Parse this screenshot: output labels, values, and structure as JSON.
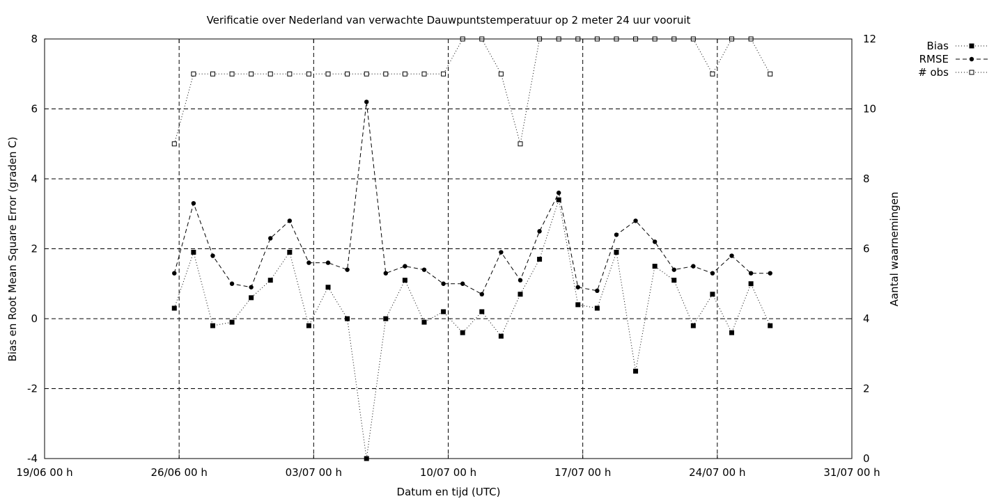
{
  "chart_data": {
    "type": "line",
    "title": "Verificatie over Nederland van verwachte Dauwpuntstemperatuur op 2 meter 24 uur vooruit",
    "xlabel": "Datum en tijd (UTC)",
    "ylabel": "Bias en Root Mean Square Error (graden C)",
    "y2label": "Aantal waarnemingen",
    "x_ticks": [
      "19/06 00 h",
      "26/06 00 h",
      "03/07 00 h",
      "10/07 00 h",
      "17/07 00 h",
      "24/07 00 h",
      "31/07 00 h"
    ],
    "y_ticks": [
      "8",
      "6",
      "4",
      "2",
      "0",
      "-2",
      "-4"
    ],
    "y2_ticks": [
      "12",
      "10",
      "8",
      "6",
      "4",
      "2",
      "0"
    ],
    "xlim": [
      "2006-06-19 00:00",
      "2006-07-31 00:00"
    ],
    "ylim": [
      -4,
      8
    ],
    "y2lim": [
      0,
      12
    ],
    "grid": true,
    "legend_position": "top-right outside",
    "x": [
      "2006-06-25 18:00",
      "2006-06-26 18:00",
      "2006-06-27 18:00",
      "2006-06-28 18:00",
      "2006-06-29 18:00",
      "2006-06-30 18:00",
      "2006-07-01 18:00",
      "2006-07-02 18:00",
      "2006-07-03 18:00",
      "2006-07-04 18:00",
      "2006-07-05 18:00",
      "2006-07-06 18:00",
      "2006-07-07 18:00",
      "2006-07-08 18:00",
      "2006-07-09 18:00",
      "2006-07-10 18:00",
      "2006-07-11 18:00",
      "2006-07-12 18:00",
      "2006-07-13 18:00",
      "2006-07-14 18:00",
      "2006-07-15 18:00",
      "2006-07-16 18:00",
      "2006-07-17 18:00",
      "2006-07-18 18:00",
      "2006-07-19 18:00",
      "2006-07-20 18:00",
      "2006-07-21 18:00",
      "2006-07-22 18:00",
      "2006-07-23 18:00",
      "2006-07-24 18:00",
      "2006-07-25 18:00",
      "2006-07-26 18:00"
    ],
    "series": [
      {
        "name": "Bias",
        "axis": "left",
        "marker": "filled-square",
        "dash": "dotted",
        "values": [
          0.3,
          1.9,
          -0.2,
          -0.1,
          0.6,
          1.1,
          1.9,
          -0.2,
          0.9,
          0.0,
          -4.0,
          0.0,
          1.1,
          -0.1,
          0.2,
          -0.4,
          0.2,
          -0.5,
          0.7,
          1.7,
          3.4,
          0.4,
          0.3,
          1.9,
          -1.5,
          1.5,
          1.1,
          -0.2,
          0.7,
          -0.4,
          1.0,
          -0.2
        ]
      },
      {
        "name": "RMSE",
        "axis": "left",
        "marker": "filled-circle",
        "dash": "dashed",
        "values": [
          1.3,
          3.3,
          1.8,
          1.0,
          0.9,
          2.3,
          2.8,
          1.6,
          1.6,
          1.4,
          6.2,
          1.3,
          1.5,
          1.4,
          1.0,
          1.0,
          0.7,
          1.9,
          1.1,
          2.5,
          3.6,
          0.9,
          0.8,
          2.4,
          2.8,
          2.2,
          1.4,
          1.5,
          1.3,
          1.8,
          1.3,
          1.3
        ]
      },
      {
        "name": "# obs",
        "axis": "right",
        "marker": "open-square",
        "dash": "dotted",
        "values": [
          9,
          11,
          11,
          11,
          11,
          11,
          11,
          11,
          11,
          11,
          11,
          11,
          11,
          11,
          11,
          12,
          12,
          11,
          9,
          12,
          12,
          12,
          12,
          12,
          12,
          12,
          12,
          12,
          11,
          12,
          12,
          11
        ]
      }
    ]
  }
}
